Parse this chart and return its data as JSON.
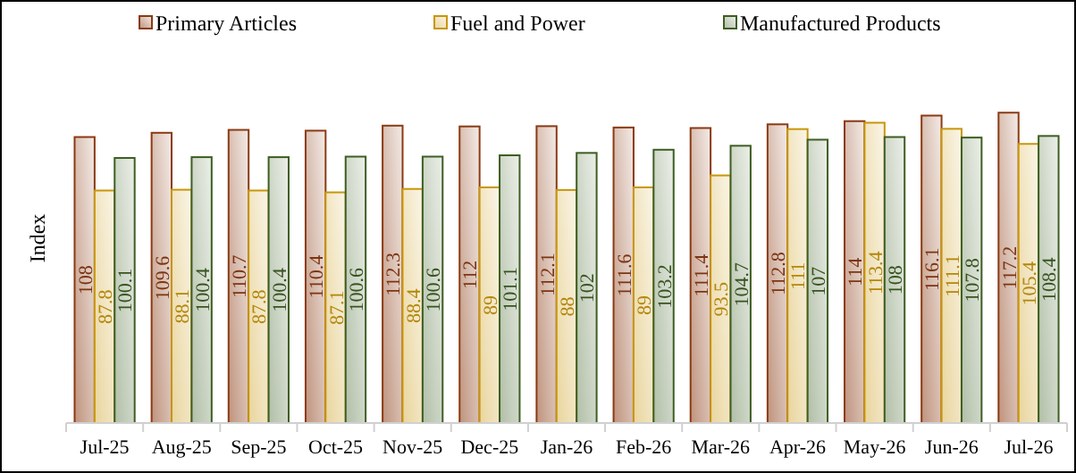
{
  "chart_data": {
    "type": "bar",
    "ylabel": "Index",
    "categories": [
      "Jul-25",
      "Aug-25",
      "Sep-25",
      "Oct-25",
      "Nov-25",
      "Dec-25",
      "Jan-26",
      "Feb-26",
      "Mar-26",
      "Apr-26",
      "May-26",
      "Jun-26",
      "Jul-26"
    ],
    "series": [
      {
        "name": "Primary Articles",
        "color": "#8b3a12",
        "values": [
          108,
          109.6,
          110.7,
          110.4,
          112.3,
          112,
          112.1,
          111.6,
          111.4,
          112.8,
          114,
          116.1,
          117.2
        ]
      },
      {
        "name": "Fuel and Power",
        "color": "#c8960a",
        "values": [
          87.8,
          88.1,
          87.8,
          87.1,
          88.4,
          89,
          88,
          89,
          93.5,
          111,
          113.4,
          111.1,
          105.4
        ]
      },
      {
        "name": "Manufactured Products",
        "color": "#3d5e22",
        "values": [
          100.1,
          100.4,
          100.4,
          100.6,
          100.6,
          101.1,
          102,
          103.2,
          104.7,
          107,
          108,
          107.8,
          108.4
        ]
      }
    ],
    "tick_labels": "x",
    "data_labels": true,
    "legend": "top",
    "grid": false
  }
}
